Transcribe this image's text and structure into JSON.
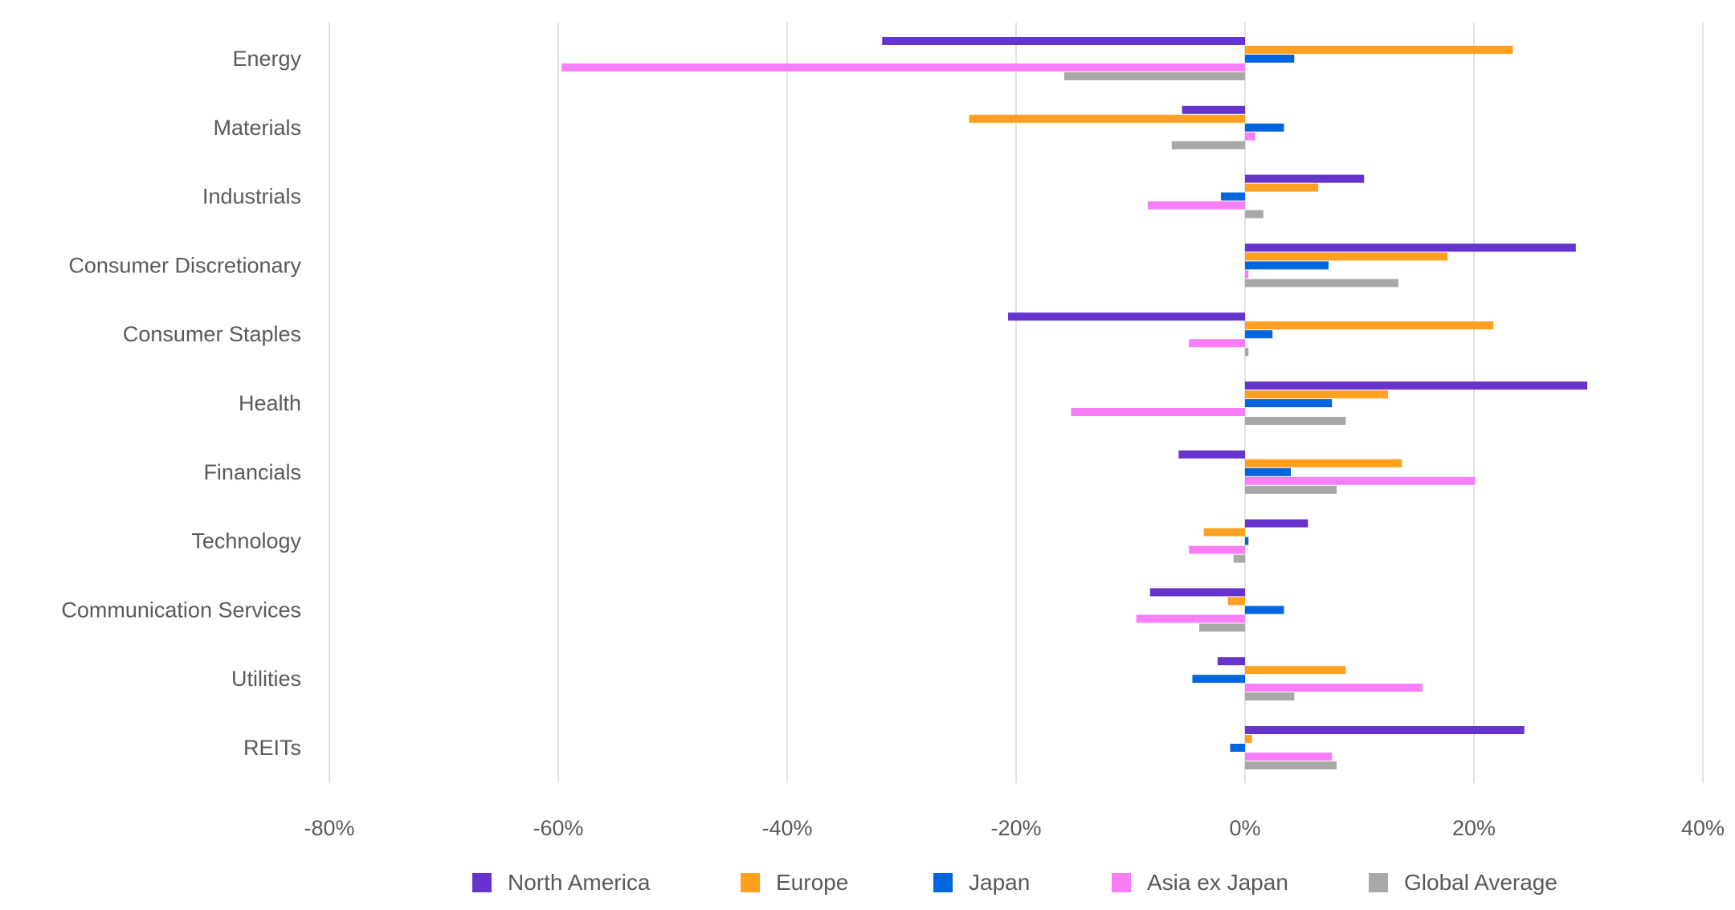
{
  "chart_data": {
    "type": "bar",
    "orientation": "horizontal",
    "title": "",
    "xlabel": "",
    "ylabel": "",
    "xlim": [
      -80,
      40
    ],
    "x_ticks": [
      "-80%",
      "-60%",
      "-40%",
      "-20%",
      "0%",
      "20%",
      "40%"
    ],
    "x_tick_values": [
      -80,
      -60,
      -40,
      -20,
      0,
      20,
      40
    ],
    "grid": "vertical",
    "legend_position": "bottom",
    "categories": [
      "Energy",
      "Materials",
      "Industrials",
      "Consumer Discretionary",
      "Consumer Staples",
      "Health",
      "Financials",
      "Technology",
      "Communication Services",
      "Utilities",
      "REITs"
    ],
    "series": [
      {
        "name": "North America",
        "color": "#6633CC",
        "values": [
          -31.7,
          -5.5,
          10.4,
          28.9,
          -20.7,
          29.9,
          -5.8,
          5.5,
          -8.3,
          -2.4,
          24.4
        ]
      },
      {
        "name": "Europe",
        "color": "#FFA020",
        "values": [
          23.4,
          -24.1,
          6.4,
          17.7,
          21.7,
          12.5,
          13.7,
          -3.6,
          -1.5,
          8.8,
          0.6
        ]
      },
      {
        "name": "Japan",
        "color": "#0066E0",
        "values": [
          4.3,
          3.4,
          -2.1,
          7.3,
          2.4,
          7.6,
          4.0,
          0.3,
          3.4,
          -4.6,
          -1.3
        ]
      },
      {
        "name": "Asia ex Japan",
        "color": "#F87EF8",
        "values": [
          -59.7,
          0.9,
          -8.5,
          0.3,
          -4.9,
          -15.2,
          20.1,
          -4.9,
          -9.5,
          15.5,
          7.6
        ]
      },
      {
        "name": "Global Average",
        "color": "#A8A8A8",
        "values": [
          -15.8,
          -6.4,
          1.6,
          13.4,
          0.3,
          8.8,
          8.0,
          -1.0,
          -4.0,
          4.3,
          8.0
        ]
      }
    ]
  }
}
